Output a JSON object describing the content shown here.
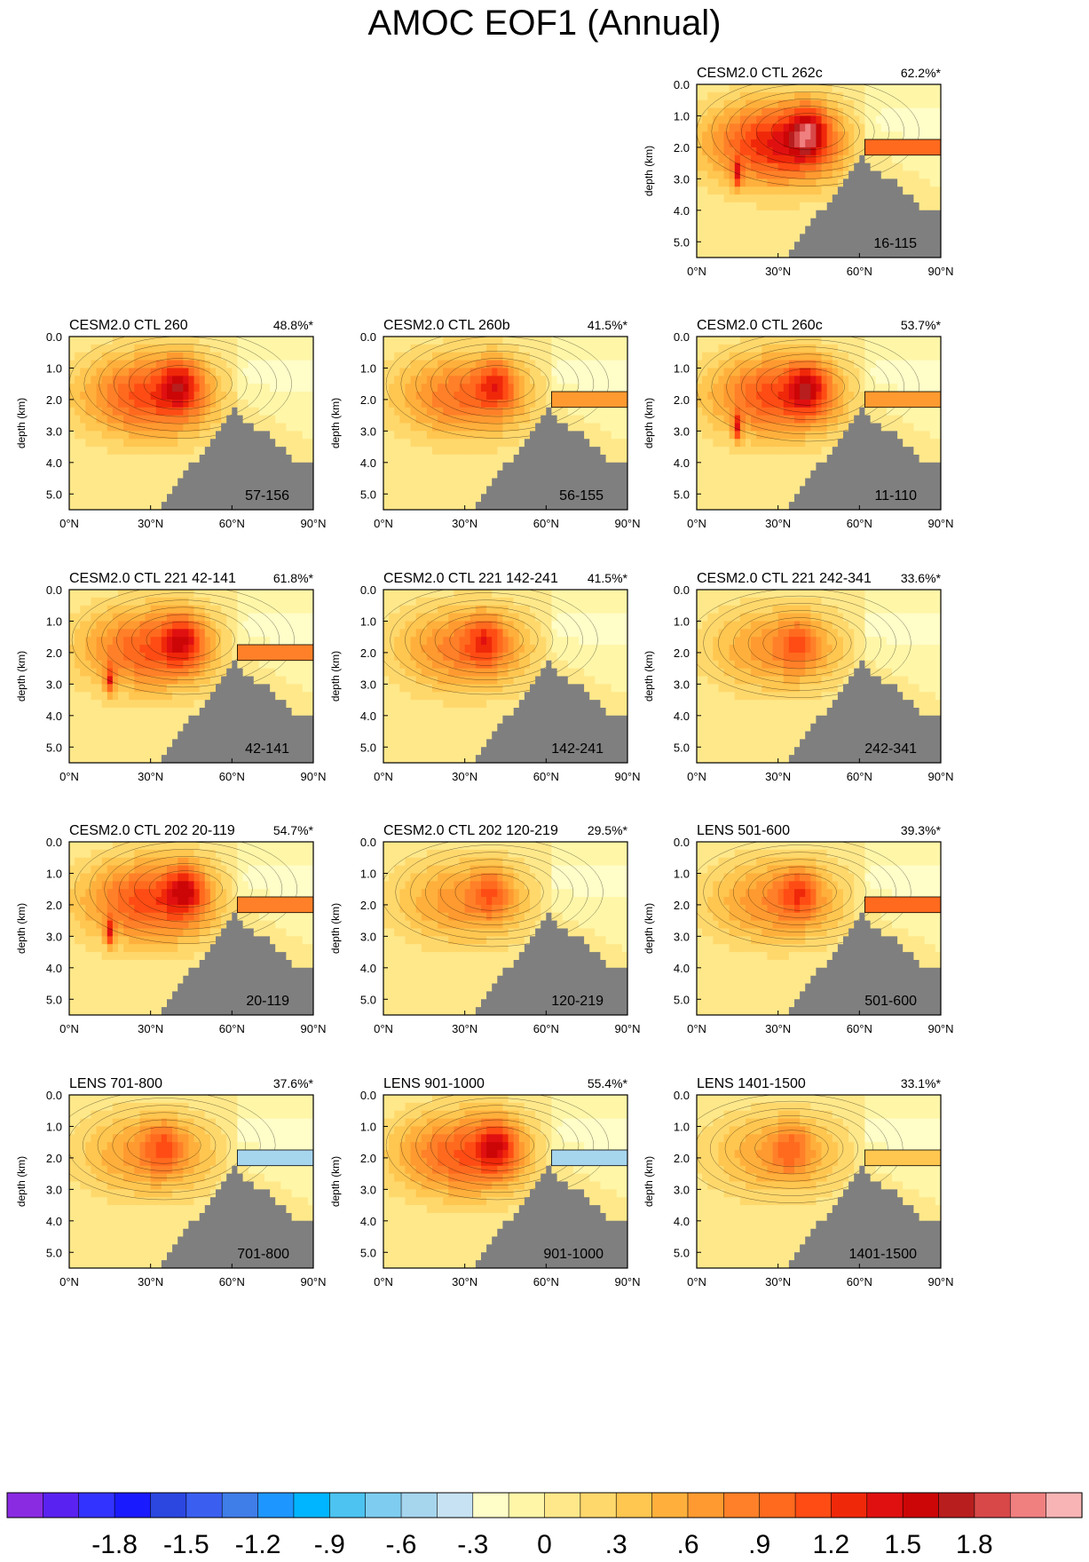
{
  "figure": {
    "title": "AMOC EOF1 (Annual)",
    "ylabel": "depth (km)",
    "yticks": [
      "0.0",
      "1.0",
      "2.0",
      "3.0",
      "4.0",
      "5.0"
    ],
    "xticks": [
      "0°N",
      "30°N",
      "60°N",
      "90°N"
    ]
  },
  "colorbar": {
    "colors": [
      "#8a2be2",
      "#5a22f0",
      "#3333ff",
      "#1a1aff",
      "#2b47e0",
      "#3a5ff0",
      "#3f7de8",
      "#1e96ff",
      "#00b5ff",
      "#4cc3f0",
      "#7ecdf0",
      "#a6d5ee",
      "#c6e2f3",
      "#fffdc8",
      "#fff6a8",
      "#ffe88a",
      "#ffd86c",
      "#ffc650",
      "#ffb03c",
      "#ff9a30",
      "#ff8028",
      "#ff6a1e",
      "#ff4c14",
      "#f0280a",
      "#e01010",
      "#cc0606",
      "#b81e1e",
      "#d84848",
      "#f08080",
      "#f8b4b4"
    ],
    "labels": [
      "-1.8",
      "-1.5",
      "-1.2",
      "-.9",
      "-.6",
      "-.3",
      "0",
      ".3",
      ".6",
      ".9",
      "1.2",
      "1.5",
      "1.8"
    ]
  },
  "chart_data": [
    {
      "type": "heatmap",
      "title": "CESM2.0 CTL 262c",
      "pct": "62.2%*",
      "years": "16-115",
      "peak": 1.95,
      "peak_lat": 41,
      "peak_depth": 1.5,
      "shelf": true,
      "shelf_val": 0.9,
      "south": true
    },
    {
      "type": "heatmap",
      "title": "CESM2.0 CTL 260",
      "pct": "48.8%*",
      "years": "57-156",
      "peak": 1.6,
      "peak_lat": 41,
      "peak_depth": 1.5,
      "shelf": false,
      "shelf_val": 0,
      "south": false
    },
    {
      "type": "heatmap",
      "title": "CESM2.0 CTL 260b",
      "pct": "41.5%*",
      "years": "56-155",
      "peak": 1.3,
      "peak_lat": 42,
      "peak_depth": 1.5,
      "shelf": true,
      "shelf_val": 0.7,
      "south": false
    },
    {
      "type": "heatmap",
      "title": "CESM2.0 CTL 260c",
      "pct": "53.7%*",
      "years": "11-110",
      "peak": 1.6,
      "peak_lat": 41,
      "peak_depth": 1.6,
      "shelf": true,
      "shelf_val": 0.7,
      "south": true
    },
    {
      "type": "heatmap",
      "title": "CESM2.0 CTL 221 42-141",
      "pct": "61.8%*",
      "years": "42-141",
      "peak": 1.5,
      "peak_lat": 42,
      "peak_depth": 1.6,
      "shelf": true,
      "shelf_val": 0.8,
      "south": true
    },
    {
      "type": "heatmap",
      "title": "CESM2.0 CTL 221 142-241",
      "pct": "41.5%*",
      "years": "142-241",
      "peak": 1.2,
      "peak_lat": 38,
      "peak_depth": 1.6,
      "shelf": false,
      "shelf_val": 0,
      "south": false
    },
    {
      "type": "heatmap",
      "title": "CESM2.0 CTL 221 242-341",
      "pct": "33.6%*",
      "years": "242-341",
      "peak": 1.0,
      "peak_lat": 38,
      "peak_depth": 1.7,
      "shelf": false,
      "shelf_val": 0,
      "south": false
    },
    {
      "type": "heatmap",
      "title": "CESM2.0 CTL 202 20-119",
      "pct": "54.7%*",
      "years": "20-119",
      "peak": 1.6,
      "peak_lat": 43,
      "peak_depth": 1.5,
      "shelf": true,
      "shelf_val": 0.8,
      "south": true
    },
    {
      "type": "heatmap",
      "title": "CESM2.0 CTL 202 120-219",
      "pct": "29.5%*",
      "years": "120-219",
      "peak": 1.0,
      "peak_lat": 40,
      "peak_depth": 1.6,
      "shelf": false,
      "shelf_val": 0,
      "south": false
    },
    {
      "type": "heatmap",
      "title": "LENS 501-600",
      "pct": "39.3%*",
      "years": "501-600",
      "peak": 1.1,
      "peak_lat": 38,
      "peak_depth": 1.6,
      "shelf": true,
      "shelf_val": 0.9,
      "south": false
    },
    {
      "type": "heatmap",
      "title": "LENS 701-800",
      "pct": "37.6%*",
      "years": "701-800",
      "peak": 1.0,
      "peak_lat": 35,
      "peak_depth": 1.6,
      "shelf": true,
      "shelf_val": -0.6,
      "south": false
    },
    {
      "type": "heatmap",
      "title": "LENS 901-1000",
      "pct": "55.4%*",
      "years": "901-1000",
      "peak": 1.5,
      "peak_lat": 42,
      "peak_depth": 1.6,
      "shelf": true,
      "shelf_val": -0.6,
      "south": false
    },
    {
      "type": "heatmap",
      "title": "LENS 1401-1500",
      "pct": "33.1%*",
      "years": "1401-1500",
      "peak": 0.9,
      "peak_lat": 35,
      "peak_depth": 1.7,
      "shelf": true,
      "shelf_val": 0.3,
      "south": false
    }
  ]
}
